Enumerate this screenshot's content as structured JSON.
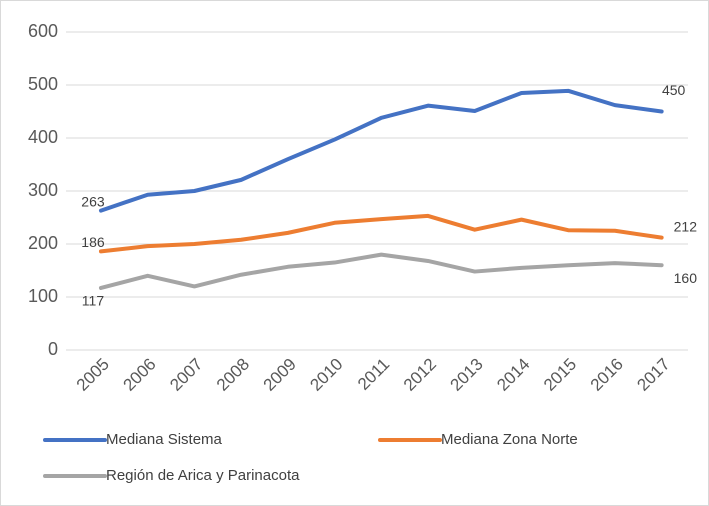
{
  "chart_data": {
    "type": "line",
    "categories": [
      "2005",
      "2006",
      "2007",
      "2008",
      "2009",
      "2010",
      "2011",
      "2012",
      "2013",
      "2014",
      "2015",
      "2016",
      "2017"
    ],
    "series": [
      {
        "name": "Mediana Sistema",
        "color": "#4472c4",
        "values": [
          263,
          293,
          300,
          321,
          360,
          397,
          438,
          461,
          451,
          485,
          489,
          462,
          450
        ]
      },
      {
        "name": "Mediana Zona Norte",
        "color": "#ed7d31",
        "values": [
          186,
          196,
          200,
          208,
          221,
          240,
          247,
          253,
          227,
          246,
          226,
          225,
          212
        ]
      },
      {
        "name": "Región de Arica y Parinacota",
        "color": "#a5a5a5",
        "values": [
          117,
          140,
          120,
          142,
          157,
          165,
          180,
          168,
          148,
          155,
          160,
          164,
          160
        ]
      }
    ],
    "ylim": [
      0,
      600
    ],
    "yticks": [
      0,
      100,
      200,
      300,
      400,
      500,
      600
    ],
    "grid": true,
    "data_labels": "first-last",
    "legend": "bottom"
  }
}
